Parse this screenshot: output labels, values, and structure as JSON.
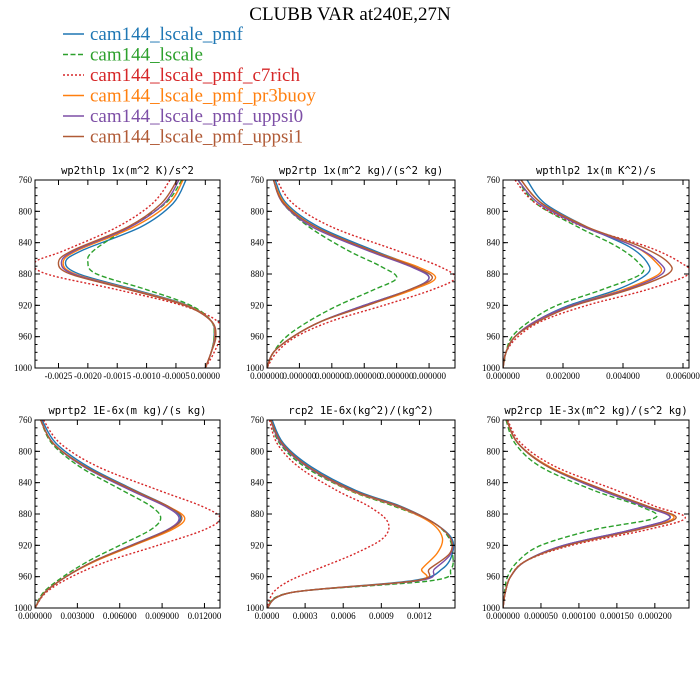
{
  "figure": {
    "title": "CLUBB VAR at240E,27N"
  },
  "chart_data": {
    "legend": [
      {
        "name": "cam144_lscale_pmf",
        "color": "#1f77b4",
        "style": "solid"
      },
      {
        "name": "cam144_lscale",
        "color": "#2ca02c",
        "style": "dashed"
      },
      {
        "name": "cam144_lscale_pmf_c7rich",
        "color": "#d62728",
        "style": "dotted"
      },
      {
        "name": "cam144_lscale_pmf_pr3buoy",
        "color": "#ff7f0e",
        "style": "solid"
      },
      {
        "name": "cam144_lscale_pmf_uppsi0",
        "color": "#7d4fa6",
        "style": "solid"
      },
      {
        "name": "cam144_lscale_pmf_uppsi1",
        "color": "#b05a36",
        "style": "solid"
      }
    ],
    "y_axis": {
      "label": "",
      "ylim": [
        760,
        1000
      ],
      "inverted": true,
      "ticks": [
        760,
        800,
        840,
        880,
        920,
        960,
        1000
      ],
      "tick_labels": [
        "760",
        "800",
        "840",
        "880",
        "920",
        "960",
        "1000"
      ]
    },
    "charts": [
      {
        "type": "line",
        "title": "wp2thlp  1x(m^2 K)/s^2",
        "xlim": [
          -0.0029,
          0.00025
        ],
        "x_ticks": [
          -0.0025,
          -0.002,
          -0.0015,
          -0.001,
          -0.0005,
          0.0
        ],
        "x_tick_labels": [
          "-0.0025",
          "-0.0020",
          "-0.0015",
          "-0.0010",
          "-0.0005",
          "0.00000"
        ],
        "y": [
          760,
          790,
          820,
          850,
          865,
          880,
          900,
          920,
          940,
          960,
          980,
          1000
        ],
        "series": [
          {
            "x": [
              -0.00033,
              -0.00055,
              -0.0011,
              -0.0021,
              -0.00238,
              -0.00215,
              -0.0012,
              -0.0003,
              0.0001,
              0.00015,
              0.0001,
              0.0
            ]
          },
          {
            "x": [
              -0.0004,
              -0.00068,
              -0.0013,
              -0.0019,
              -0.002,
              -0.00185,
              -0.001,
              -0.00025,
              0.0001,
              0.00015,
              0.0001,
              0.0
            ]
          },
          {
            "x": [
              -0.0006,
              -0.0009,
              -0.0015,
              -0.0024,
              -0.0029,
              -0.0027,
              -0.0015,
              -0.0004,
              0.0002,
              0.00025,
              0.00015,
              0.0
            ]
          },
          {
            "x": [
              -0.00038,
              -0.00062,
              -0.00122,
              -0.00218,
              -0.00242,
              -0.00222,
              -0.00125,
              -0.00032,
              0.0001,
              0.00016,
              0.0001,
              0.0
            ]
          },
          {
            "x": [
              -0.00045,
              -0.0007,
              -0.00128,
              -0.00222,
              -0.00245,
              -0.00225,
              -0.00128,
              -0.00034,
              0.0001,
              0.00017,
              0.0001,
              0.0
            ]
          },
          {
            "x": [
              -0.00048,
              -0.00075,
              -0.00132,
              -0.00226,
              -0.0025,
              -0.0023,
              -0.0013,
              -0.00035,
              0.0001,
              0.00018,
              0.0001,
              0.0
            ]
          }
        ]
      },
      {
        "type": "line",
        "title": "wp2rtp  1x(m^2 kg)/(s^2 kg)",
        "xlim": [
          0.0,
          5.8e-07
        ],
        "x_ticks": [
          0.0,
          1e-07,
          2e-07,
          3e-07,
          4e-07,
          5e-07
        ],
        "x_tick_labels": [
          "0.000000",
          "0.000000",
          "0.000000",
          "0.000000",
          "0.000000",
          "0.000000"
        ],
        "y": [
          760,
          790,
          820,
          850,
          870,
          885,
          900,
          920,
          940,
          960,
          980,
          1000
        ],
        "series": [
          {
            "x": [
              2.5e-08,
              6e-08,
              1.6e-07,
              3.3e-07,
              4.5e-07,
              5e-07,
              4.4e-07,
              3e-07,
              1.7e-07,
              8e-08,
              2e-08,
              0.0
            ]
          },
          {
            "x": [
              2e-08,
              5e-08,
              1.3e-07,
              2.5e-07,
              3.5e-07,
              4e-07,
              3.3e-07,
              2.2e-07,
              1.3e-07,
              6e-08,
              2e-08,
              0.0
            ]
          },
          {
            "x": [
              3e-08,
              8e-08,
              2e-07,
              4e-07,
              5.3e-07,
              5.8e-07,
              5.1e-07,
              3.6e-07,
              2e-07,
              9e-08,
              3e-08,
              0.0
            ]
          },
          {
            "x": [
              2e-08,
              5.5e-08,
              1.5e-07,
              3.2e-07,
              4.6e-07,
              5.2e-07,
              4.5e-07,
              3.1e-07,
              1.7e-07,
              8e-08,
              2e-08,
              0.0
            ]
          },
          {
            "x": [
              2e-08,
              5e-08,
              1.4e-07,
              3.1e-07,
              4.4e-07,
              5e-07,
              4.4e-07,
              3e-07,
              1.7e-07,
              8e-08,
              2e-08,
              0.0
            ]
          },
          {
            "x": [
              2e-08,
              5.2e-08,
              1.5e-07,
              3.2e-07,
              4.5e-07,
              5.1e-07,
              4.4e-07,
              3.1e-07,
              1.7e-07,
              8e-08,
              2e-08,
              0.0
            ]
          }
        ]
      },
      {
        "type": "line",
        "title": "wpthlp2  1x(m K^2)/s",
        "xlim": [
          0.0,
          0.0062
        ],
        "x_ticks": [
          0.0,
          0.002,
          0.004,
          0.006
        ],
        "x_tick_labels": [
          "0.000000",
          "0.002000",
          "0.004000",
          "0.006000"
        ],
        "y": [
          760,
          790,
          820,
          845,
          865,
          880,
          900,
          920,
          940,
          960,
          980,
          1000
        ],
        "series": [
          {
            "x": [
              0.0008,
              0.0014,
              0.0028,
              0.0042,
              0.0048,
              0.0048,
              0.0038,
              0.0022,
              0.0011,
              0.0004,
              0.0001,
              0.0
            ]
          },
          {
            "x": [
              0.0005,
              0.0011,
              0.0025,
              0.0038,
              0.0045,
              0.0046,
              0.0033,
              0.0018,
              0.0009,
              0.0003,
              0.0001,
              0.0
            ]
          },
          {
            "x": [
              0.0004,
              0.0011,
              0.0027,
              0.0048,
              0.0059,
              0.0062,
              0.0048,
              0.0028,
              0.0013,
              0.0005,
              0.0001,
              0.0
            ]
          },
          {
            "x": [
              0.0006,
              0.0013,
              0.0028,
              0.0044,
              0.0051,
              0.0052,
              0.004,
              0.0023,
              0.0011,
              0.0004,
              0.0001,
              0.0
            ]
          },
          {
            "x": [
              0.0005,
              0.0012,
              0.0027,
              0.0044,
              0.0052,
              0.0053,
              0.0041,
              0.0023,
              0.0011,
              0.0004,
              0.0001,
              0.0
            ]
          },
          {
            "x": [
              0.0006,
              0.0013,
              0.0028,
              0.0046,
              0.0055,
              0.0055,
              0.0042,
              0.0024,
              0.0012,
              0.0004,
              0.0001,
              0.0
            ]
          }
        ]
      },
      {
        "type": "line",
        "title": "wprtp2  1E-6x(m kg)/(s kg)",
        "xlim": [
          0.0,
          0.0131
        ],
        "x_ticks": [
          0.0,
          0.003,
          0.006,
          0.009,
          0.012
        ],
        "x_tick_labels": [
          "0.000000",
          "0.003000",
          "0.006000",
          "0.009000",
          "0.012000"
        ],
        "y": [
          760,
          790,
          820,
          850,
          870,
          885,
          900,
          920,
          940,
          960,
          980,
          1000
        ],
        "series": [
          {
            "x": [
              0.0005,
              0.0015,
              0.0038,
              0.0071,
              0.0094,
              0.0103,
              0.0094,
              0.0068,
              0.0042,
              0.0022,
              0.0007,
              0.0
            ]
          },
          {
            "x": [
              0.0004,
              0.0012,
              0.0032,
              0.0062,
              0.0082,
              0.0089,
              0.0082,
              0.006,
              0.0038,
              0.002,
              0.0006,
              0.0
            ]
          },
          {
            "x": [
              0.0006,
              0.0018,
              0.0045,
              0.0088,
              0.0118,
              0.0131,
              0.012,
              0.0087,
              0.0052,
              0.0026,
              0.0008,
              0.0
            ]
          },
          {
            "x": [
              0.0004,
              0.0013,
              0.0036,
              0.007,
              0.0094,
              0.0106,
              0.0097,
              0.007,
              0.0043,
              0.0022,
              0.0007,
              0.0
            ]
          },
          {
            "x": [
              0.0004,
              0.0013,
              0.0035,
              0.0068,
              0.0092,
              0.0102,
              0.0094,
              0.0068,
              0.0042,
              0.0022,
              0.0007,
              0.0
            ]
          },
          {
            "x": [
              0.0004,
              0.0013,
              0.0036,
              0.007,
              0.0094,
              0.0104,
              0.0095,
              0.0069,
              0.0042,
              0.0022,
              0.0007,
              0.0
            ]
          }
        ]
      },
      {
        "type": "line",
        "title": "rcp2  1E-6x(kg^2)/(kg^2)",
        "xlim": [
          0.0,
          0.00148
        ],
        "x_ticks": [
          0.0,
          0.0003,
          0.0006,
          0.0009,
          0.0012
        ],
        "x_tick_labels": [
          "0.0000",
          "0.0003",
          "0.0006",
          "0.0009",
          "0.0012"
        ],
        "y": [
          760,
          790,
          820,
          850,
          870,
          890,
          910,
          930,
          950,
          965,
          980,
          1000
        ],
        "series": [
          {
            "x": [
              4e-05,
              0.00013,
              0.00035,
              0.0007,
              0.00105,
              0.0013,
              0.00145,
              0.00146,
              0.00138,
              0.00115,
              0.0002,
              0.0
            ]
          },
          {
            "x": [
              3e-05,
              0.0001,
              0.0003,
              0.00065,
              0.001,
              0.0013,
              0.00143,
              0.00146,
              0.00145,
              0.0013,
              0.0002,
              0.0
            ]
          },
          {
            "x": [
              2e-05,
              8e-05,
              0.00025,
              0.00055,
              0.0008,
              0.00095,
              0.00092,
              0.0007,
              0.0004,
              0.00018,
              5e-05,
              0.0
            ]
          },
          {
            "x": [
              3e-05,
              0.00011,
              0.00032,
              0.00066,
              0.00102,
              0.00128,
              0.00138,
              0.00134,
              0.00122,
              0.00118,
              0.0002,
              0.0
            ]
          },
          {
            "x": [
              3e-05,
              0.00011,
              0.00032,
              0.00067,
              0.00103,
              0.0013,
              0.00144,
              0.00145,
              0.00132,
              0.0012,
              0.0002,
              0.0
            ]
          },
          {
            "x": [
              3e-05,
              0.00012,
              0.00033,
              0.00068,
              0.00104,
              0.0013,
              0.00144,
              0.00144,
              0.00128,
              0.00118,
              0.0002,
              0.0
            ]
          }
        ]
      },
      {
        "type": "line",
        "title": "wp2rcp  1E-3x(m^2 kg)/(s^2 kg)",
        "xlim": [
          0.0,
          0.000245
        ],
        "x_ticks": [
          0.0,
          5e-05,
          0.0001,
          0.00015,
          0.0002
        ],
        "x_tick_labels": [
          "0.000000",
          "0.000050",
          "0.000100",
          "0.000150",
          "0.000200"
        ],
        "y": [
          760,
          790,
          820,
          850,
          870,
          885,
          900,
          920,
          940,
          960,
          980,
          1000
        ],
        "series": [
          {
            "x": [
              5e-06,
              2e-05,
              6e-05,
              0.00013,
              0.00019,
              0.00022,
              0.00017,
              8e-05,
              3e-05,
              1e-05,
              3e-06,
              0.0
            ]
          },
          {
            "x": [
              4e-06,
              1.6e-05,
              5e-05,
              0.00012,
              0.00018,
              0.0002,
              0.00012,
              5e-05,
              2e-05,
              6e-06,
              2e-06,
              0.0
            ]
          },
          {
            "x": [
              6e-06,
              2.4e-05,
              7e-05,
              0.00015,
              0.0002,
              0.00024,
              0.00019,
              9e-05,
              3e-05,
              1e-05,
              3e-06,
              0.0
            ]
          },
          {
            "x": [
              5e-06,
              2e-05,
              6.2e-05,
              0.000135,
              0.00019,
              0.000225,
              0.000175,
              8.2e-05,
              3e-05,
              1e-05,
              3e-06,
              0.0
            ]
          },
          {
            "x": [
              5e-06,
              2e-05,
              6e-05,
              0.00013,
              0.000185,
              0.00022,
              0.00017,
              8e-05,
              3e-05,
              1e-05,
              3e-06,
              0.0
            ]
          },
          {
            "x": [
              5e-06,
              2e-05,
              6e-05,
              0.000135,
              0.00019,
              0.000228,
              0.000178,
              8.5e-05,
              3e-05,
              1e-05,
              3e-06,
              0.0
            ]
          }
        ]
      }
    ]
  }
}
